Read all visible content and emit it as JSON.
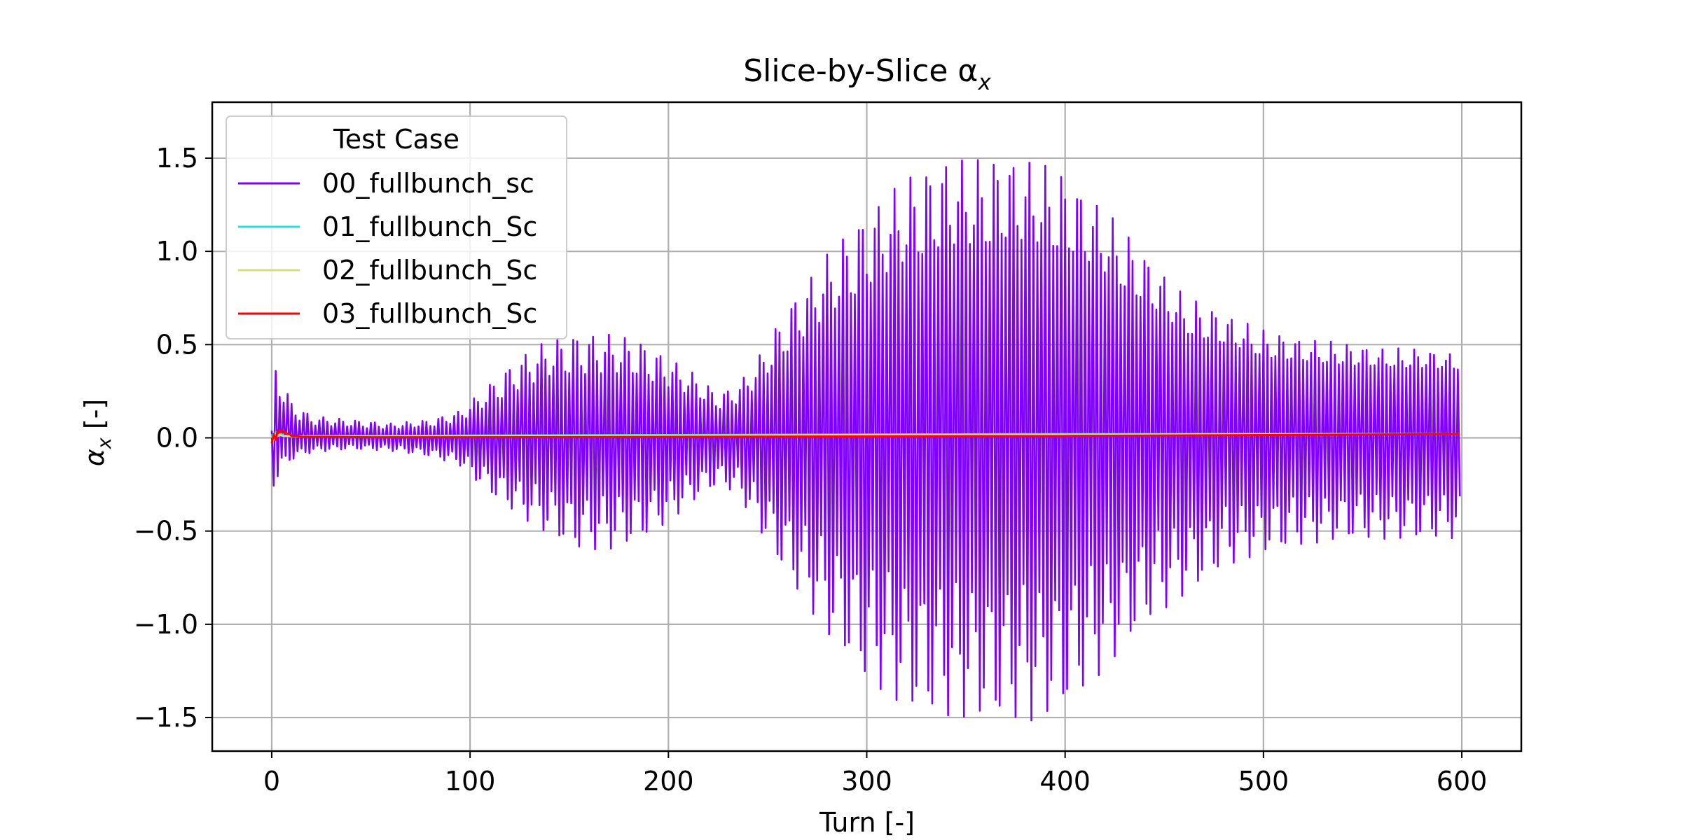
{
  "chart_data": {
    "type": "line",
    "title": "Slice-by-Slice α",
    "title_subscript": "x",
    "xlabel": "Turn [-]",
    "ylabel": "α",
    "ylabel_subscript": "x",
    "ylabel_suffix": " [-]",
    "xlim": [
      -30,
      630
    ],
    "ylim": [
      -1.68,
      1.8
    ],
    "xticks": [
      0,
      100,
      200,
      300,
      400,
      500,
      600
    ],
    "yticks": [
      -1.5,
      -1.0,
      -0.5,
      0.0,
      0.5,
      1.0,
      1.5
    ],
    "ytick_labels": [
      "−1.5",
      "−1.0",
      "−0.5",
      "0.0",
      "0.5",
      "1.0",
      "1.5"
    ],
    "xtick_labels": [
      "0",
      "100",
      "200",
      "300",
      "400",
      "500",
      "600"
    ],
    "grid": true,
    "legend": {
      "title": "Test Case",
      "placement": "top-left"
    },
    "series": [
      {
        "name": "00_fullbunch_sc",
        "color": "#8000ff",
        "description_envelope": "oscillating every turn; amplitude envelope (max, min) by turn",
        "x": [
          0,
          1,
          5,
          10,
          20,
          40,
          60,
          80,
          95,
          110,
          125,
          140,
          155,
          170,
          185,
          200,
          215,
          225,
          235,
          245,
          260,
          280,
          300,
          320,
          340,
          360,
          370,
          385,
          400,
          420,
          440,
          460,
          480,
          500,
          520,
          540,
          560,
          580,
          599
        ],
        "upper": [
          0.04,
          0.45,
          0.33,
          0.2,
          0.12,
          0.1,
          0.08,
          0.1,
          0.15,
          0.3,
          0.45,
          0.55,
          0.58,
          0.58,
          0.55,
          0.45,
          0.35,
          0.25,
          0.3,
          0.45,
          0.75,
          1.05,
          1.3,
          1.5,
          1.62,
          1.62,
          1.65,
          1.62,
          1.55,
          1.35,
          1.1,
          0.85,
          0.75,
          0.65,
          0.6,
          0.58,
          0.55,
          0.55,
          0.52
        ],
        "lower": [
          -0.02,
          -0.27,
          -0.18,
          -0.12,
          -0.08,
          -0.06,
          -0.07,
          -0.1,
          -0.15,
          -0.3,
          -0.42,
          -0.52,
          -0.6,
          -0.6,
          -0.55,
          -0.45,
          -0.32,
          -0.25,
          -0.3,
          -0.48,
          -0.75,
          -1.05,
          -1.3,
          -1.45,
          -1.5,
          -1.5,
          -1.52,
          -1.52,
          -1.45,
          -1.25,
          -1.0,
          -0.85,
          -0.7,
          -0.62,
          -0.58,
          -0.55,
          -0.55,
          -0.55,
          -0.55
        ]
      },
      {
        "name": "01_fullbunch_Sc",
        "color": "#2adddd",
        "x": [
          0,
          1,
          2,
          3,
          4,
          5,
          6,
          8,
          10,
          15,
          20,
          50,
          100,
          200,
          300,
          400,
          500,
          599
        ],
        "values": [
          0.02,
          -0.01,
          0.03,
          0.01,
          0.02,
          0.02,
          0.01,
          0.01,
          0.01,
          0.005,
          0.01,
          0.01,
          0.012,
          0.015,
          0.018,
          0.02,
          0.02,
          0.02
        ]
      },
      {
        "name": "02_fullbunch_Sc",
        "color": "#d4dd80",
        "x": [
          0,
          1,
          2,
          3,
          4,
          6,
          8,
          10,
          20,
          50,
          100,
          200,
          300,
          400,
          500,
          599
        ],
        "values": [
          0.01,
          -0.01,
          0.02,
          0.01,
          0.015,
          0.01,
          0.01,
          0.008,
          0.008,
          0.008,
          0.01,
          0.012,
          0.015,
          0.018,
          0.02,
          0.02
        ]
      },
      {
        "name": "03_fullbunch_Sc",
        "color": "#ff0000",
        "x": [
          0,
          1,
          2,
          3,
          4,
          5,
          6,
          7,
          8,
          9,
          10,
          12,
          15,
          20,
          30,
          50,
          100,
          200,
          300,
          400,
          500,
          599
        ],
        "values": [
          -0.03,
          0.02,
          -0.01,
          0.04,
          0.03,
          0.04,
          0.03,
          0.03,
          0.02,
          0.02,
          0.01,
          0.01,
          0.005,
          0.005,
          0.005,
          0.003,
          0.003,
          0.005,
          0.008,
          0.01,
          0.015,
          0.02
        ]
      }
    ]
  }
}
